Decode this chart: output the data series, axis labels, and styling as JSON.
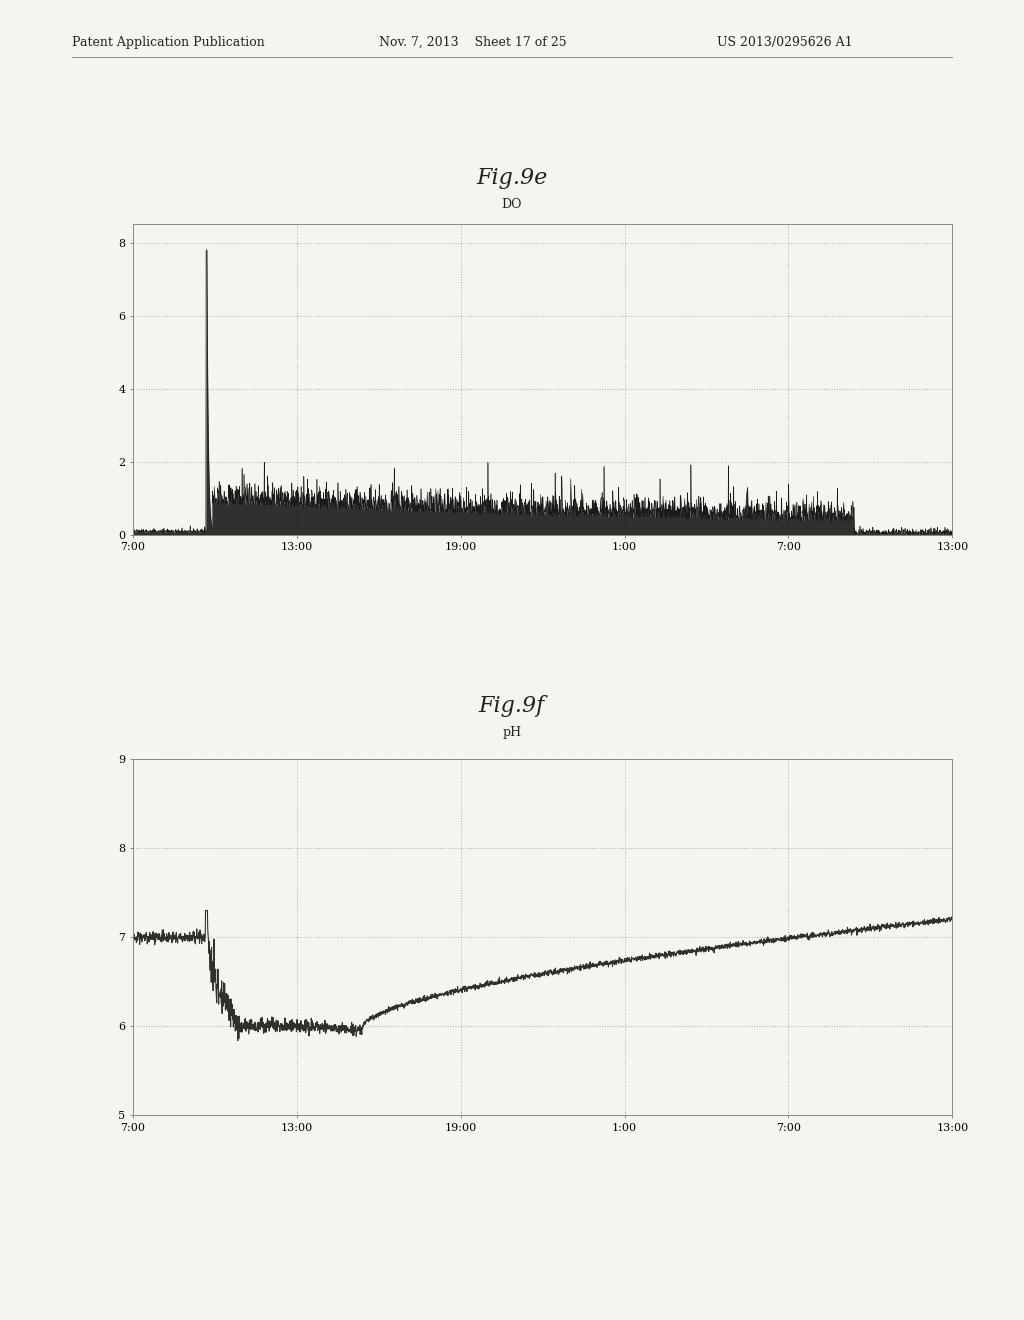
{
  "fig_title_top_left": "Patent Application Publication",
  "fig_title_top_mid": "Nov. 7, 2013    Sheet 17 of 25",
  "fig_title_top_right": "US 2013/0295626 A1",
  "chart1_title": "Fig.9e",
  "chart1_subtitle": "DO",
  "chart1_xlabels": [
    "7:00",
    "13:00",
    "19:00",
    "1:00",
    "7:00",
    "13:00"
  ],
  "chart1_yticks": [
    0,
    2,
    4,
    6,
    8
  ],
  "chart1_ylim": [
    0,
    8.5
  ],
  "chart2_title": "Fig.9f",
  "chart2_subtitle": "pH",
  "chart2_xlabels": [
    "7:00",
    "13:00",
    "19:00",
    "1:00",
    "7:00",
    "13:00"
  ],
  "chart2_yticks": [
    5,
    6,
    7,
    8,
    9
  ],
  "chart2_ylim": [
    5,
    9
  ],
  "bg_color": "#f5f5f0",
  "line_color": "#1a1a1a",
  "grid_color": "#999999",
  "header_color": "#222222",
  "title_fontsize": 16,
  "subtitle_fontsize": 9,
  "tick_fontsize": 8,
  "header_fontsize": 9
}
